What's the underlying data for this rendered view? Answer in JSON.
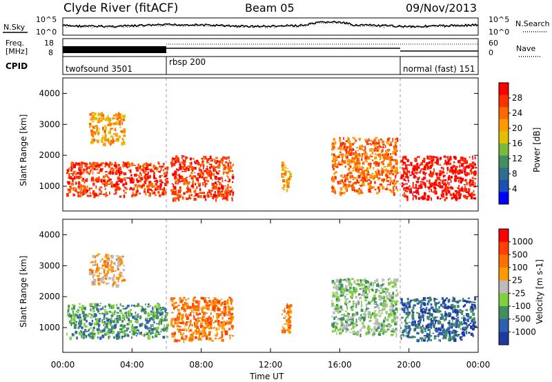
{
  "header": {
    "station": "Clyde River (fitACF)",
    "beam": "Beam 05",
    "date": "09/Nov/2013"
  },
  "nsky_panel": {
    "left_label": "N.Sky",
    "right_label": "N.Search",
    "left_ticks": [
      "10^5",
      "10^0"
    ],
    "right_ticks": [
      "10^5",
      "10^0"
    ]
  },
  "freq_panel": {
    "left_label_1": "Freq.",
    "left_label_2": "[MHz]",
    "right_label": "Nave",
    "left_ticks": [
      "18",
      "8"
    ],
    "right_ticks": [
      "60",
      "0"
    ]
  },
  "cpid_panel": {
    "label": "CPID",
    "programs": [
      {
        "name": "twofsound 3501",
        "start_hour": 0
      },
      {
        "name": "rbsp 200",
        "start_hour": 6
      },
      {
        "name": "normal (fast) 151",
        "start_hour": 19.5
      }
    ]
  },
  "colors": {
    "power_scale": [
      "#0000ff",
      "#1e4fb4",
      "#2f6e8c",
      "#3f8f5f",
      "#7db83c",
      "#e0c000",
      "#ff9a00",
      "#ff6a00",
      "#ff3000",
      "#ff0000"
    ],
    "velocity_scale": [
      "#ff0000",
      "#ff4000",
      "#ff7000",
      "#ff9a00",
      "#bbbbbb",
      "#7ed03c",
      "#3f8f5f",
      "#2f5fb0",
      "#1e3aa0"
    ]
  },
  "chart_data": [
    {
      "type": "heatmap",
      "panel": "power",
      "ylabel": "Slant Range [km]",
      "yticks": [
        "1000",
        "2000",
        "3000",
        "4000"
      ],
      "ylim": [
        200,
        4500
      ],
      "xlim": [
        0,
        24
      ],
      "colorbar_label": "Power [dB]",
      "colorbar_ticks": [
        "4",
        "8",
        "12",
        "16",
        "20",
        "24",
        "28"
      ],
      "patches": [
        {
          "x": [
            0.2,
            6.0
          ],
          "y": [
            700,
            1800
          ],
          "level": 8
        },
        {
          "x": [
            1.5,
            3.5
          ],
          "y": [
            2400,
            3400
          ],
          "level": 6
        },
        {
          "x": [
            6.2,
            9.8
          ],
          "y": [
            600,
            2000
          ],
          "level": 8
        },
        {
          "x": [
            12.6,
            13.1
          ],
          "y": [
            900,
            1800
          ],
          "level": 6
        },
        {
          "x": [
            15.5,
            19.3
          ],
          "y": [
            800,
            2600
          ],
          "level": 7
        },
        {
          "x": [
            19.5,
            23.8
          ],
          "y": [
            600,
            2000
          ],
          "level": 9
        }
      ]
    },
    {
      "type": "heatmap",
      "panel": "velocity",
      "ylabel": "Slant Range [km]",
      "yticks": [
        "1000",
        "2000",
        "3000",
        "4000"
      ],
      "ylim": [
        200,
        4500
      ],
      "xlim": [
        0,
        24
      ],
      "xlabel": "Time UT",
      "xticks": [
        "00:00",
        "04:00",
        "08:00",
        "12:00",
        "16:00",
        "20:00",
        "00:00"
      ],
      "colorbar_label": "Velocity [m s-1]",
      "colorbar_ticks": [
        "1000",
        "500",
        "100",
        "25",
        "-25",
        "-100",
        "-500",
        "-1000"
      ],
      "patches": [
        {
          "x": [
            0.2,
            6.0
          ],
          "y": [
            700,
            1800
          ],
          "level": 6
        },
        {
          "x": [
            1.5,
            3.5
          ],
          "y": [
            2400,
            3400
          ],
          "level": 3
        },
        {
          "x": [
            6.2,
            9.8
          ],
          "y": [
            600,
            2000
          ],
          "level": 2
        },
        {
          "x": [
            12.6,
            13.1
          ],
          "y": [
            900,
            1800
          ],
          "level": 2
        },
        {
          "x": [
            15.5,
            19.3
          ],
          "y": [
            800,
            2600
          ],
          "level": 5
        },
        {
          "x": [
            19.5,
            23.8
          ],
          "y": [
            600,
            2000
          ],
          "level": 7
        }
      ]
    }
  ]
}
